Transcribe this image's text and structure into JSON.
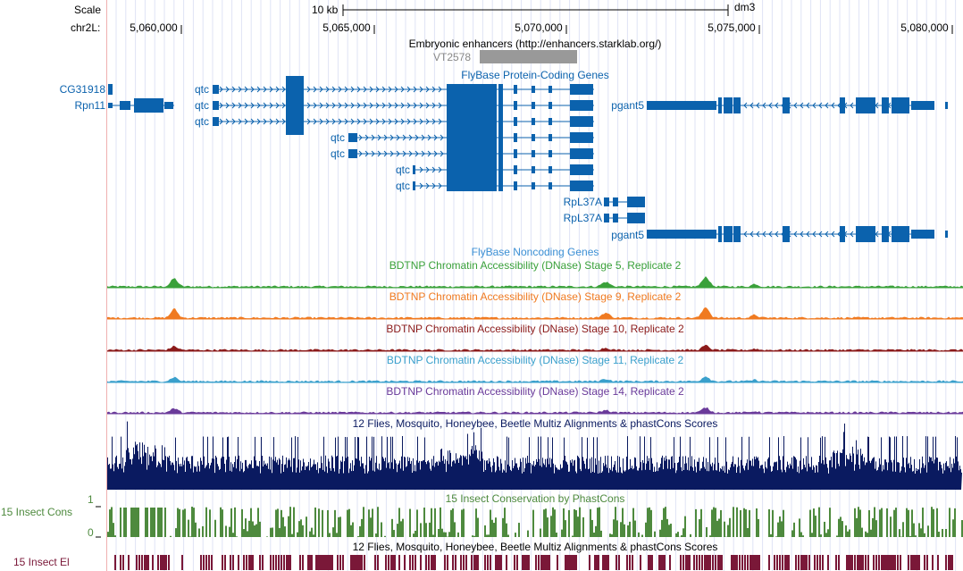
{
  "scale": {
    "label": "Scale",
    "bar_label": "10 kb",
    "assembly": "dm3"
  },
  "position": {
    "chrom_label": "chr2L:",
    "ticks": [
      "5,060,000",
      "5,065,000",
      "5,070,000",
      "5,075,000",
      "5,080,000"
    ]
  },
  "tracks": {
    "enhancers": {
      "title": "Embryonic enhancers (http://enhancers.starklab.org/)",
      "item": "VT2578",
      "color": "#999999"
    },
    "protein_genes": {
      "title": "FlyBase Protein-Coding Genes",
      "color": "#0b62ad",
      "labels": [
        "CG31918",
        "Rpn11",
        "qtc",
        "qtc",
        "qtc",
        "qtc",
        "qtc",
        "qtc",
        "qtc",
        "RpL37A",
        "RpL37A",
        "pgant5",
        "pgant5"
      ]
    },
    "noncoding": {
      "title": "FlyBase Noncoding Genes",
      "color": "#3b8fd4"
    },
    "dnase": [
      {
        "title": "BDTNP Chromatin Accessibility (DNase) Stage 5, Replicate 2",
        "color": "#3aa13a"
      },
      {
        "title": "BDTNP Chromatin Accessibility (DNase) Stage 9, Replicate 2",
        "color": "#f07a20"
      },
      {
        "title": "BDTNP Chromatin Accessibility (DNase) Stage 10, Replicate 2",
        "color": "#8b1a1a"
      },
      {
        "title": "BDTNP Chromatin Accessibility (DNase) Stage 11, Replicate 2",
        "color": "#3aa0cc"
      },
      {
        "title": "BDTNP Chromatin Accessibility (DNase) Stage 14, Replicate 2",
        "color": "#6a3a9a"
      }
    ],
    "multiz": {
      "title": "12 Flies, Mosquito, Honeybee, Beetle Multiz Alignments & phastCons Scores",
      "color": "#0a1a60"
    },
    "phastcons": {
      "title": "15 Insect Conservation by PhastCons",
      "side_label": "15 Insect Cons",
      "ymax": "1",
      "ymin": "0",
      "color": "#4e8a3e"
    },
    "elements": {
      "title": "12 Flies, Mosquito, Honeybee, Beetle Multiz Alignments & phastCons Scores",
      "side_label": "15 Insect El",
      "color": "#7a1838"
    }
  }
}
